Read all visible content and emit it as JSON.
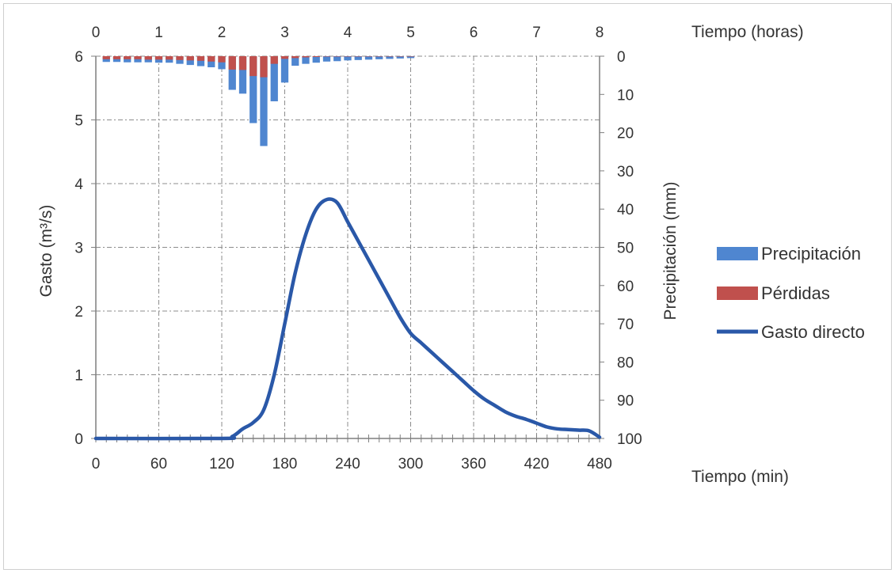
{
  "chart_data": {
    "type": "bar+line",
    "xlabel_bottom": "Tiempo (min)",
    "xlabel_top": "Tiempo (horas)",
    "ylabel_left": "Gasto (m³/s)",
    "ylabel_right": "Precipitación (mm)",
    "x_bottom_ticks": [
      "0",
      "60",
      "120",
      "180",
      "240",
      "300",
      "360",
      "420",
      "480"
    ],
    "x_top_ticks": [
      "0",
      "1",
      "2",
      "3",
      "4",
      "5",
      "6",
      "7",
      "8"
    ],
    "y_left_ticks": [
      "0",
      "1",
      "2",
      "3",
      "4",
      "5",
      "6"
    ],
    "y_right_ticks": [
      "0",
      "10",
      "20",
      "30",
      "40",
      "50",
      "60",
      "70",
      "80",
      "90",
      "100"
    ],
    "xlim": [
      0,
      480
    ],
    "ylim_left": [
      0,
      6
    ],
    "ylim_right": [
      100,
      0
    ],
    "grid": true,
    "legend_position": "right",
    "colors": {
      "precipitacion": "#4f86d0",
      "perdidas": "#c0504d",
      "gasto": "#2a58a8"
    },
    "bars": {
      "x": [
        10,
        20,
        30,
        40,
        50,
        60,
        70,
        80,
        90,
        100,
        110,
        120,
        130,
        140,
        150,
        160,
        170,
        180,
        190,
        200,
        210,
        220,
        230,
        240,
        250,
        260,
        270,
        280,
        290,
        300
      ],
      "precipitacion": [
        1.5,
        1.5,
        1.6,
        1.6,
        1.6,
        1.7,
        1.7,
        2.0,
        2.3,
        2.6,
        2.9,
        3.4,
        8.8,
        9.8,
        17.5,
        23.5,
        11.8,
        6.9,
        2.5,
        2.0,
        1.7,
        1.4,
        1.3,
        1.1,
        1.0,
        0.9,
        0.8,
        0.7,
        0.6,
        0.5
      ],
      "perdidas": [
        0.8,
        0.8,
        0.8,
        0.8,
        0.9,
        0.9,
        0.9,
        1.0,
        1.1,
        1.2,
        1.4,
        1.6,
        3.5,
        3.6,
        5.2,
        5.5,
        2.0,
        0.7,
        0.5,
        0.3,
        0.2,
        0.1,
        0.1,
        0.1,
        0.1,
        0.1,
        0.1,
        0.1,
        0.1,
        0.1
      ]
    },
    "series": [
      {
        "name": "Gasto directo",
        "x": [
          0,
          120,
          130,
          140,
          150,
          160,
          170,
          180,
          190,
          200,
          210,
          220,
          230,
          240,
          250,
          260,
          270,
          280,
          290,
          300,
          310,
          320,
          330,
          340,
          350,
          360,
          370,
          380,
          390,
          400,
          410,
          420,
          430,
          440,
          450,
          460,
          470,
          480
        ],
        "values": [
          0,
          0,
          0.03,
          0.15,
          0.25,
          0.45,
          1.0,
          1.8,
          2.6,
          3.2,
          3.6,
          3.75,
          3.7,
          3.4,
          3.1,
          2.8,
          2.5,
          2.2,
          1.9,
          1.65,
          1.5,
          1.35,
          1.2,
          1.05,
          0.9,
          0.75,
          0.62,
          0.52,
          0.42,
          0.35,
          0.3,
          0.24,
          0.18,
          0.15,
          0.14,
          0.13,
          0.12,
          0.02
        ]
      }
    ],
    "legend": [
      "Precipitación",
      "Pérdidas",
      "Gasto directo"
    ]
  }
}
